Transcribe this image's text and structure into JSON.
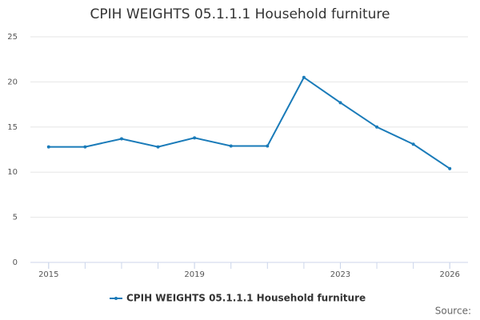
{
  "chart_data": {
    "type": "line",
    "title": "CPIH WEIGHTS 05.1.1.1 Household furniture",
    "x": [
      2015,
      2016,
      2017,
      2018,
      2019,
      2020,
      2021,
      2022,
      2023,
      2024,
      2025,
      2026
    ],
    "series": [
      {
        "name": "CPIH WEIGHTS 05.1.1.1 Household furniture",
        "color": "#1a7bb9",
        "values": [
          12.8,
          12.8,
          13.7,
          12.8,
          13.8,
          12.9,
          12.9,
          20.5,
          17.7,
          15.0,
          13.1,
          10.4
        ]
      }
    ],
    "xlim": [
      2014.5,
      2026.5
    ],
    "xticks": [
      2015,
      2019,
      2023,
      2026
    ],
    "ylim": [
      0,
      25
    ],
    "yticks": [
      0,
      5,
      10,
      15,
      20,
      25
    ],
    "grid": true,
    "legend": "bottom",
    "source": "Source:"
  }
}
